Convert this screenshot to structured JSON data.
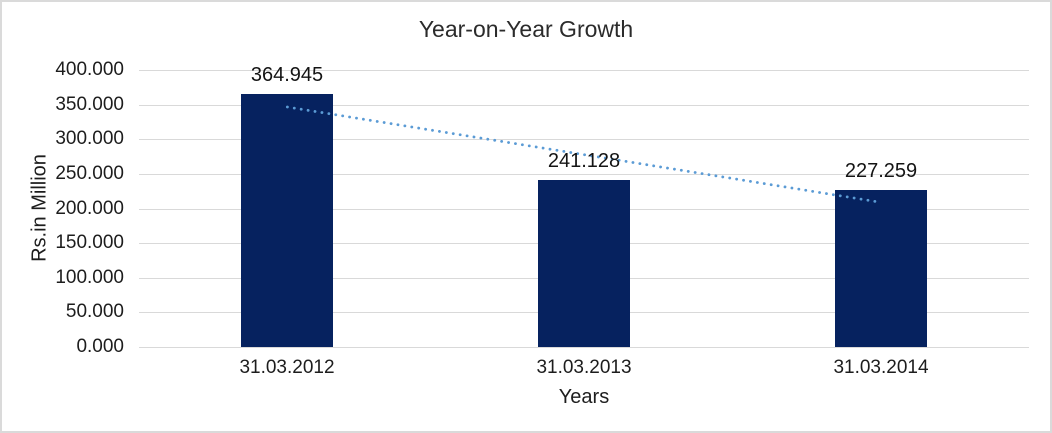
{
  "chart_data": {
    "type": "bar",
    "title": "Year-on-Year Growth",
    "xlabel": "Years",
    "ylabel": "Rs.in Million",
    "categories": [
      "31.03.2012",
      "31.03.2013",
      "31.03.2014"
    ],
    "values": [
      364.945,
      241.128,
      227.259
    ],
    "data_labels": [
      "364.945",
      "241.128",
      "227.259"
    ],
    "y_tick_labels": [
      "400.000",
      "350.000",
      "300.000",
      "250.000",
      "200.000",
      "150.000",
      "100.000",
      "50.000",
      "0.000"
    ],
    "ylim": [
      0,
      400
    ],
    "grid": true,
    "legend": "none",
    "trendline": "linear-dotted",
    "colors": {
      "bar": "#06225f",
      "trendline": "#5b9bd5",
      "gridline": "#d9d9d9",
      "text": "#262626",
      "border": "#dadada",
      "background": "#ffffff"
    }
  }
}
